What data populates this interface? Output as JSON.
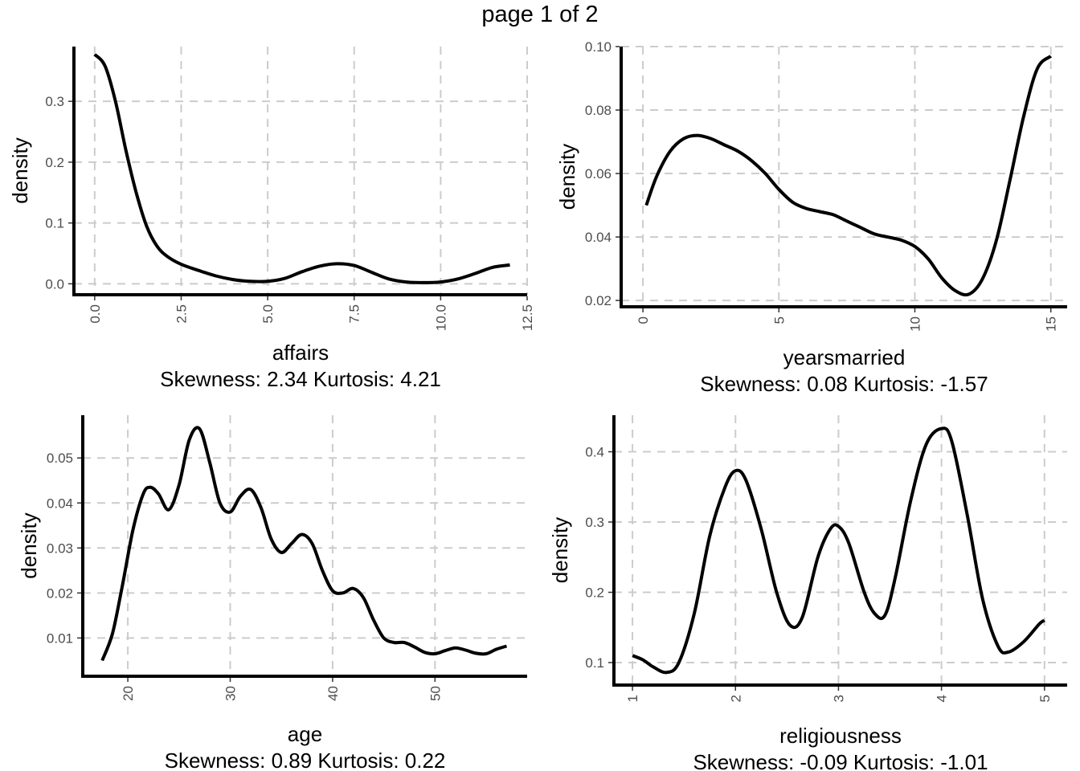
{
  "page": {
    "title": "page 1 of 2"
  },
  "chart_data": [
    {
      "type": "line",
      "xlabel": "affairs",
      "subtitle": "Skewness: 2.34 Kurtosis: 4.21",
      "ylabel": "density",
      "xlim": [
        -0.6,
        12.5
      ],
      "ylim": [
        -0.018,
        0.39
      ],
      "xticks": [
        0,
        2.5,
        5,
        7.5,
        10,
        12.5
      ],
      "xtick_labels": [
        "0.0",
        "2.5",
        "5.0",
        "7.5",
        "10.0",
        "12.5"
      ],
      "yticks": [
        0,
        0.1,
        0.2,
        0.3
      ],
      "ytick_labels": [
        "0.0",
        "0.1",
        "0.2",
        "0.3"
      ],
      "grid": true,
      "x": [
        0,
        0.3,
        0.6,
        0.9,
        1.2,
        1.5,
        1.8,
        2.1,
        2.5,
        3,
        3.5,
        4,
        4.5,
        5,
        5.5,
        6,
        6.5,
        7,
        7.5,
        8,
        8.5,
        9,
        9.5,
        10,
        10.5,
        11,
        11.5,
        12
      ],
      "y": [
        0.377,
        0.358,
        0.3,
        0.22,
        0.15,
        0.095,
        0.062,
        0.045,
        0.032,
        0.022,
        0.013,
        0.007,
        0.004,
        0.004,
        0.009,
        0.02,
        0.029,
        0.033,
        0.03,
        0.019,
        0.008,
        0.003,
        0.002,
        0.003,
        0.008,
        0.017,
        0.027,
        0.031
      ]
    },
    {
      "type": "line",
      "xlabel": "yearsmarried",
      "subtitle": "Skewness: 0.08 Kurtosis: -1.57",
      "ylabel": "density",
      "xlim": [
        -0.8,
        15.6
      ],
      "ylim": [
        0.018,
        0.1
      ],
      "xticks": [
        0,
        5,
        10,
        15
      ],
      "xtick_labels": [
        "0",
        "5",
        "10",
        "15"
      ],
      "yticks": [
        0.02,
        0.04,
        0.06,
        0.08,
        0.1
      ],
      "ytick_labels": [
        "0.02",
        "0.04",
        "0.06",
        "0.08",
        "0.10"
      ],
      "grid": true,
      "x": [
        0.125,
        0.5,
        1,
        1.5,
        2,
        2.5,
        3,
        3.5,
        4,
        4.5,
        5,
        5.5,
        6,
        6.5,
        7,
        7.5,
        8,
        8.5,
        9,
        9.5,
        10,
        10.5,
        11,
        11.5,
        12,
        12.5,
        13,
        13.5,
        14,
        14.5,
        15
      ],
      "y": [
        0.05,
        0.059,
        0.067,
        0.071,
        0.072,
        0.071,
        0.069,
        0.067,
        0.064,
        0.06,
        0.055,
        0.051,
        0.049,
        0.048,
        0.047,
        0.045,
        0.043,
        0.041,
        0.04,
        0.039,
        0.037,
        0.033,
        0.027,
        0.023,
        0.022,
        0.027,
        0.039,
        0.058,
        0.078,
        0.093,
        0.097
      ]
    },
    {
      "type": "line",
      "xlabel": "age",
      "subtitle": "Skewness: 0.89 Kurtosis: 0.22",
      "ylabel": "density",
      "xlim": [
        15.6,
        59
      ],
      "ylim": [
        0.0015,
        0.0595
      ],
      "xticks": [
        20,
        30,
        40,
        50
      ],
      "xtick_labels": [
        "20",
        "30",
        "40",
        "50"
      ],
      "yticks": [
        0.01,
        0.02,
        0.03,
        0.04,
        0.05
      ],
      "ytick_labels": [
        "0.01",
        "0.02",
        "0.03",
        "0.04",
        "0.05"
      ],
      "grid": true,
      "x": [
        17.5,
        18.5,
        19.5,
        20.5,
        21.5,
        22.2,
        23,
        24,
        25,
        26,
        27,
        28,
        29,
        30,
        31,
        32,
        33,
        34,
        35,
        36,
        37,
        38,
        39,
        40,
        41,
        42,
        43,
        44,
        45,
        46,
        47,
        48,
        49,
        50,
        51,
        52,
        53,
        54,
        55,
        56,
        57
      ],
      "y": [
        0.005,
        0.011,
        0.022,
        0.034,
        0.042,
        0.0435,
        0.042,
        0.0385,
        0.044,
        0.054,
        0.0565,
        0.049,
        0.04,
        0.038,
        0.0415,
        0.043,
        0.039,
        0.032,
        0.029,
        0.031,
        0.033,
        0.031,
        0.025,
        0.0205,
        0.02,
        0.021,
        0.019,
        0.014,
        0.01,
        0.009,
        0.009,
        0.008,
        0.0068,
        0.0065,
        0.0072,
        0.0078,
        0.0073,
        0.0066,
        0.0065,
        0.0075,
        0.0082
      ]
    },
    {
      "type": "line",
      "xlabel": "religiousness",
      "subtitle": "Skewness: -0.09 Kurtosis: -1.01",
      "ylabel": "density",
      "xlim": [
        0.82,
        5.22
      ],
      "ylim": [
        0.068,
        0.452
      ],
      "xticks": [
        1,
        2,
        3,
        4,
        5
      ],
      "xtick_labels": [
        "1",
        "2",
        "3",
        "4",
        "5"
      ],
      "yticks": [
        0.1,
        0.2,
        0.3,
        0.4
      ],
      "ytick_labels": [
        "0.1",
        "0.2",
        "0.3",
        "0.4"
      ],
      "grid": true,
      "x": [
        1,
        1.1,
        1.2,
        1.33,
        1.45,
        1.6,
        1.75,
        1.9,
        2,
        2.1,
        2.25,
        2.4,
        2.53,
        2.65,
        2.8,
        2.92,
        3,
        3.1,
        3.25,
        3.35,
        3.45,
        3.55,
        3.7,
        3.85,
        4,
        4.1,
        4.25,
        4.4,
        4.55,
        4.65,
        4.8,
        4.95,
        5
      ],
      "y": [
        0.11,
        0.104,
        0.094,
        0.086,
        0.1,
        0.17,
        0.28,
        0.35,
        0.373,
        0.36,
        0.29,
        0.2,
        0.153,
        0.165,
        0.25,
        0.29,
        0.294,
        0.27,
        0.2,
        0.17,
        0.167,
        0.22,
        0.33,
        0.41,
        0.433,
        0.415,
        0.31,
        0.19,
        0.123,
        0.115,
        0.13,
        0.155,
        0.16
      ]
    }
  ]
}
